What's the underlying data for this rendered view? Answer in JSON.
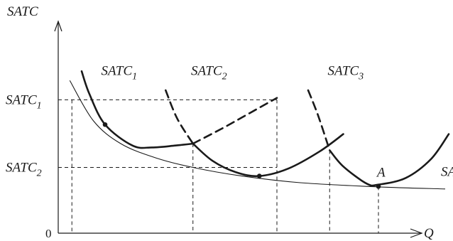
{
  "chart_data": {
    "type": "line",
    "xlabel": "Q",
    "ylabel": "SATC",
    "origin_label": "0",
    "xlim": [
      0,
      10
    ],
    "ylim": [
      0,
      10
    ],
    "y_tick_labels": [
      {
        "base": "SATC",
        "sub": "1",
        "y": 7.0
      },
      {
        "base": "SATC",
        "sub": "2",
        "y": 3.45
      }
    ],
    "series": [
      {
        "name": "SATC",
        "sub": "1",
        "style": "solid-thick",
        "points": [
          [
            0.6,
            8.5
          ],
          [
            0.8,
            7.3
          ],
          [
            1.2,
            5.7
          ],
          [
            1.9,
            4.6
          ],
          [
            2.4,
            4.5
          ],
          [
            3.0,
            4.6
          ],
          [
            3.45,
            4.7
          ]
        ]
      },
      {
        "name": "SATC",
        "sub": "1",
        "style": "dashed-thick",
        "points": [
          [
            3.45,
            4.7
          ],
          [
            4.2,
            5.5
          ],
          [
            4.9,
            6.3
          ],
          [
            5.6,
            7.1
          ]
        ]
      },
      {
        "name": "SATC",
        "sub": "2",
        "style": "dashed-thick",
        "points": [
          [
            2.75,
            7.5
          ],
          [
            3.05,
            6.0
          ],
          [
            3.45,
            4.7
          ]
        ]
      },
      {
        "name": "SATC",
        "sub": "2",
        "style": "solid-thick",
        "points": [
          [
            3.45,
            4.7
          ],
          [
            3.95,
            3.8
          ],
          [
            4.55,
            3.2
          ],
          [
            5.15,
            3.0
          ],
          [
            5.9,
            3.4
          ],
          [
            6.7,
            4.3
          ],
          [
            7.3,
            5.2
          ]
        ]
      },
      {
        "name": "SATC",
        "sub": "3",
        "style": "dashed-thick",
        "points": [
          [
            6.4,
            7.5
          ],
          [
            6.65,
            6.2
          ],
          [
            6.95,
            4.35
          ]
        ]
      },
      {
        "name": "SATC",
        "sub": "3",
        "style": "solid-thick",
        "points": [
          [
            6.95,
            4.35
          ],
          [
            7.3,
            3.5
          ],
          [
            7.9,
            2.6
          ],
          [
            8.2,
            2.55
          ],
          [
            8.9,
            2.9
          ],
          [
            9.55,
            3.9
          ],
          [
            10.0,
            5.2
          ]
        ]
      },
      {
        "name": "SATC",
        "sub": "",
        "style": "solid-thin",
        "points": [
          [
            0.3,
            8.0
          ],
          [
            0.9,
            5.9
          ],
          [
            1.6,
            4.7
          ],
          [
            2.5,
            3.95
          ],
          [
            3.45,
            3.45
          ],
          [
            4.7,
            3.0
          ],
          [
            6.2,
            2.65
          ],
          [
            8.2,
            2.43
          ],
          [
            9.9,
            2.32
          ]
        ]
      }
    ],
    "points": [
      {
        "x": 1.2,
        "y": 5.7,
        "label": ""
      },
      {
        "x": 5.15,
        "y": 3.0,
        "label": ""
      },
      {
        "x": 8.2,
        "y": 2.45,
        "label": "A"
      }
    ],
    "guides": {
      "horizontal": [
        {
          "y": 7.0,
          "x_to": 5.6
        },
        {
          "y": 3.45,
          "x_to": 5.6
        }
      ],
      "vertical": [
        {
          "x": 0.35,
          "y_from": 7.0
        },
        {
          "x": 3.45,
          "y_from": 4.7
        },
        {
          "x": 5.6,
          "y_from": 7.0
        },
        {
          "x": 6.95,
          "y_from": 4.35
        },
        {
          "x": 8.2,
          "y_from": 2.45
        }
      ]
    },
    "curve_labels": [
      {
        "base": "SATC",
        "sub": "1",
        "x": 1.1,
        "y": 8.3
      },
      {
        "base": "SATC",
        "sub": "2",
        "x": 3.4,
        "y": 8.3
      },
      {
        "base": "SATC",
        "sub": "3",
        "x": 6.9,
        "y": 8.3
      },
      {
        "base": "SATC",
        "sub": "",
        "x": 9.8,
        "y": 3.0
      }
    ]
  }
}
